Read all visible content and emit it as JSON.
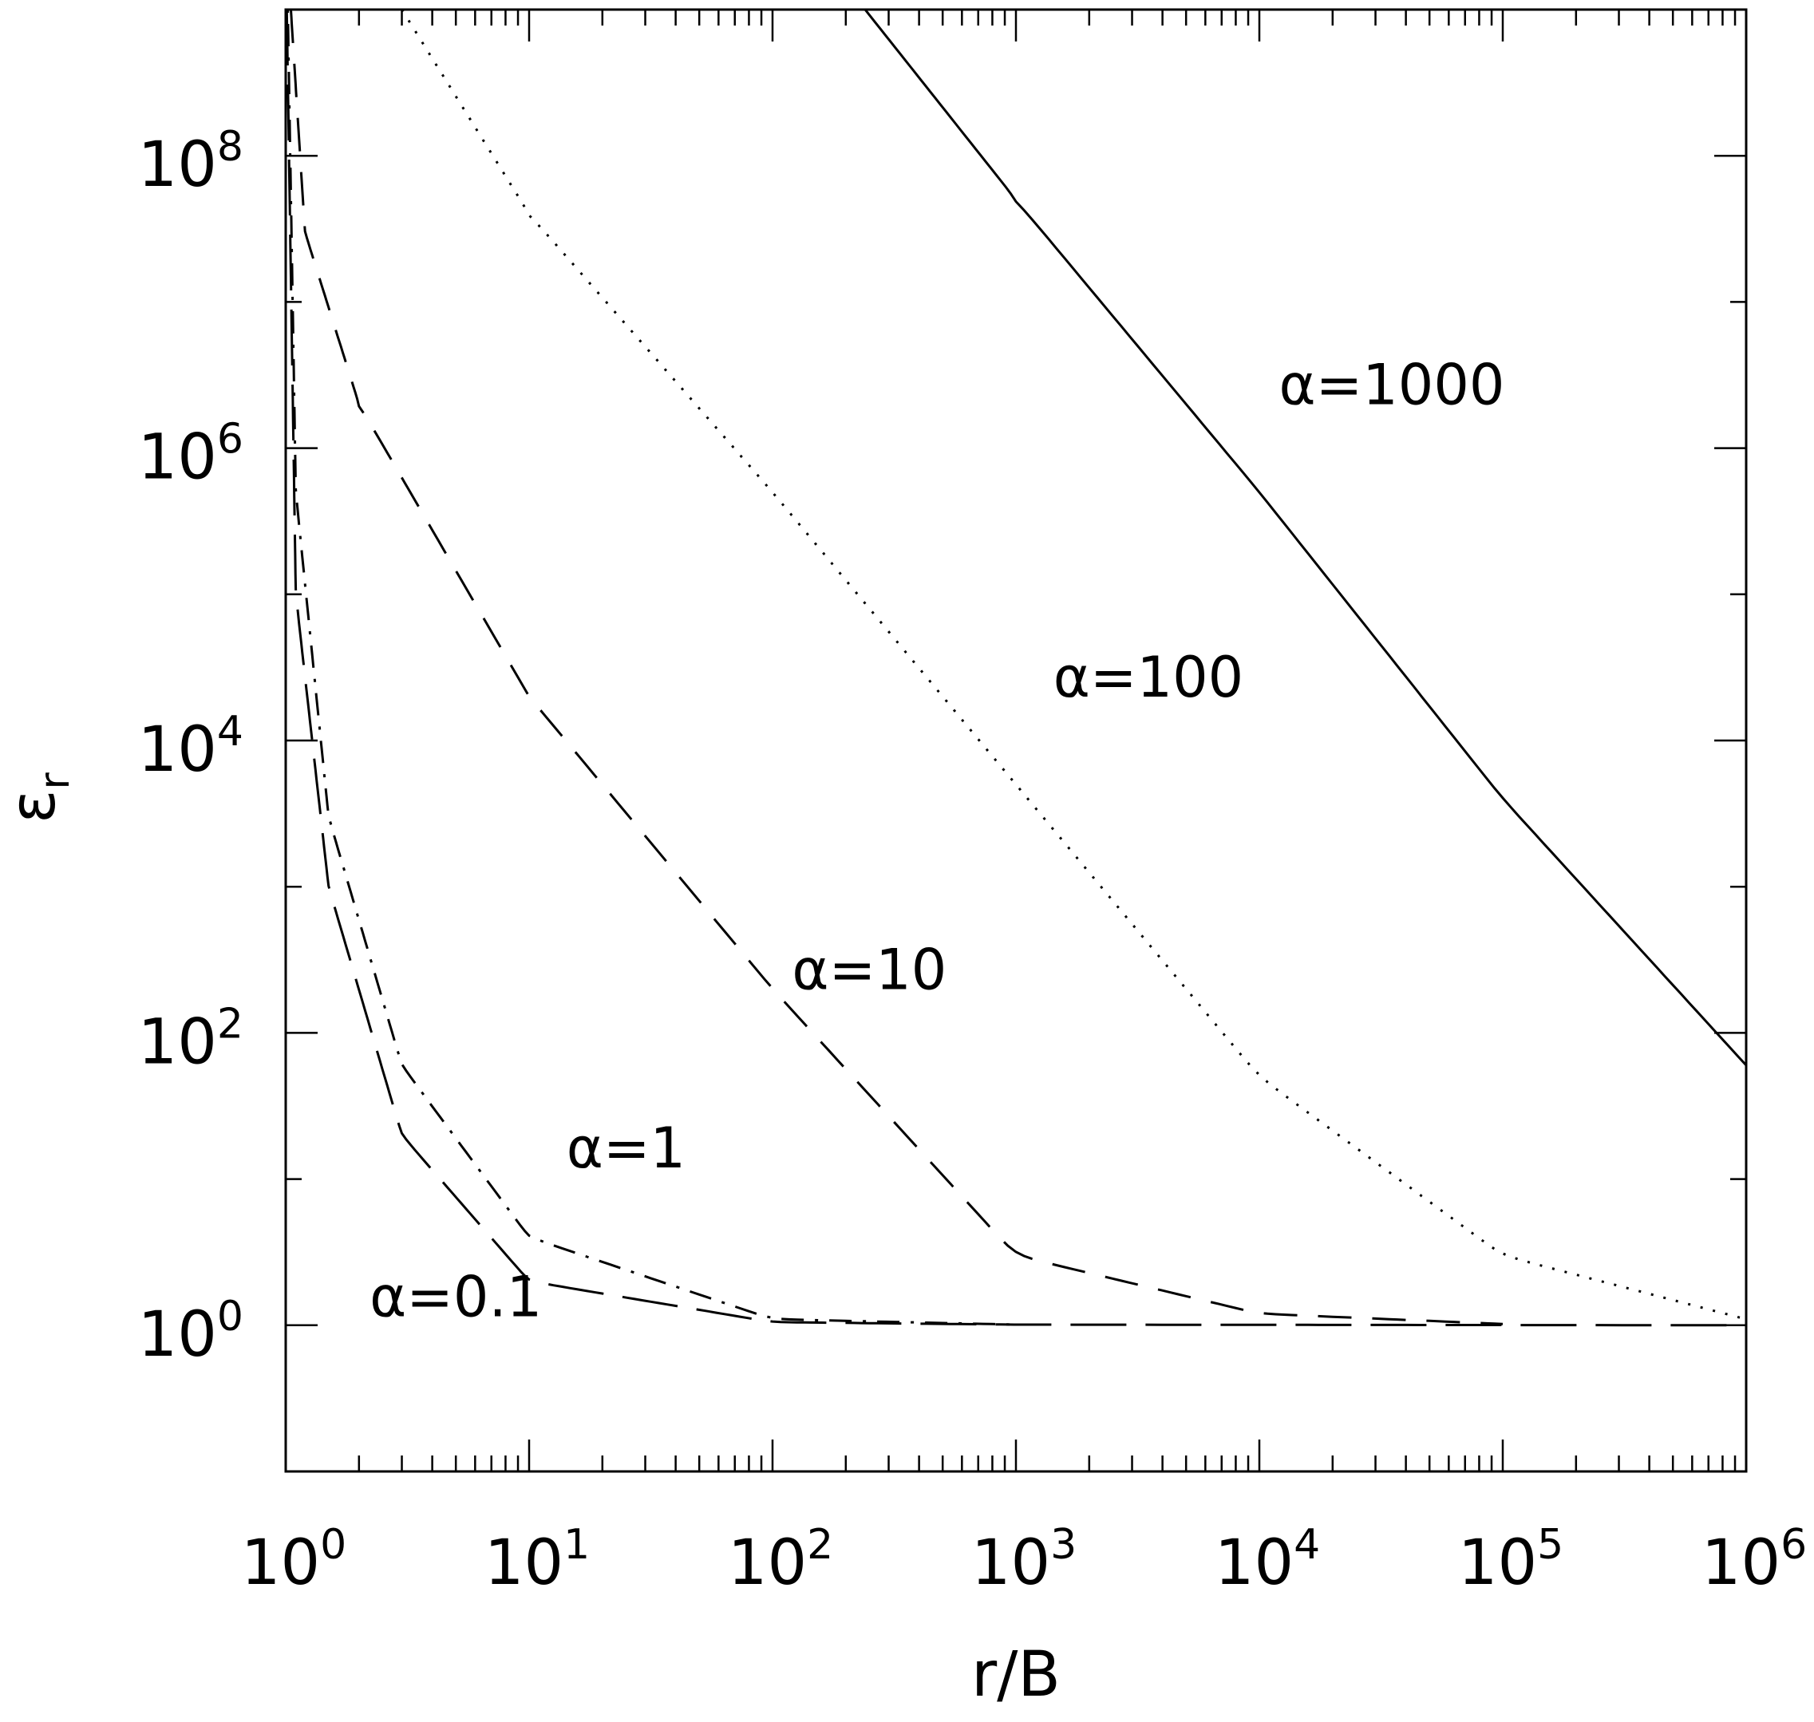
{
  "chart_data": {
    "type": "line",
    "title": "",
    "xlabel": "r/B",
    "ylabel": {
      "base": "ε",
      "sub": "r"
    },
    "xscale": "log",
    "yscale": "log",
    "xlim": [
      1,
      1000000
    ],
    "ylim": [
      0.1,
      1000000000
    ],
    "grid": false,
    "legend": "none",
    "x_ticks": [
      {
        "base": "10",
        "exp": "0"
      },
      {
        "base": "10",
        "exp": "1"
      },
      {
        "base": "10",
        "exp": "2"
      },
      {
        "base": "10",
        "exp": "3"
      },
      {
        "base": "10",
        "exp": "4"
      },
      {
        "base": "10",
        "exp": "5"
      },
      {
        "base": "10",
        "exp": "6"
      }
    ],
    "y_ticks": [
      {
        "base": "10",
        "exp": "0"
      },
      {
        "base": "10",
        "exp": "2"
      },
      {
        "base": "10",
        "exp": "4"
      },
      {
        "base": "10",
        "exp": "6"
      },
      {
        "base": "10",
        "exp": "8"
      }
    ],
    "series": [
      {
        "label": "α=1000",
        "style": "solid",
        "alpha": 1000,
        "x": [
          240,
          1000,
          10000,
          100000,
          1000000
        ],
        "y": [
          1000000000,
          50000000,
          500000,
          4000,
          60
        ]
      },
      {
        "label": "α=100",
        "style": "dotted",
        "alpha": 100,
        "x": [
          3,
          10,
          100,
          1000,
          10000,
          100000,
          1000000
        ],
        "y": [
          1000000000,
          40000000,
          500000,
          5000,
          50,
          3,
          1.1
        ]
      },
      {
        "label": "α=10",
        "style": "dashed",
        "alpha": 10,
        "x": [
          1.05,
          1.2,
          2,
          10,
          100,
          1000,
          10000,
          100000
        ],
        "y": [
          1000000000,
          30000000,
          2000000,
          20000,
          200,
          3,
          1.2,
          1.02
        ]
      },
      {
        "label": "α=1",
        "style": "dash-dot",
        "alpha": 1,
        "x": [
          1.02,
          1.1,
          1.5,
          3,
          10,
          100,
          1000
        ],
        "y": [
          1000000000,
          500000,
          3000,
          60,
          4,
          1.1,
          1.01
        ]
      },
      {
        "label": "α=0.1",
        "style": "long-dash",
        "alpha": 0.1,
        "x": [
          1.01,
          1.1,
          1.5,
          3,
          10,
          100,
          1000,
          1000000
        ],
        "y": [
          1000000000,
          100000,
          1000,
          20,
          2,
          1.05,
          1.01,
          1.0
        ]
      }
    ]
  }
}
